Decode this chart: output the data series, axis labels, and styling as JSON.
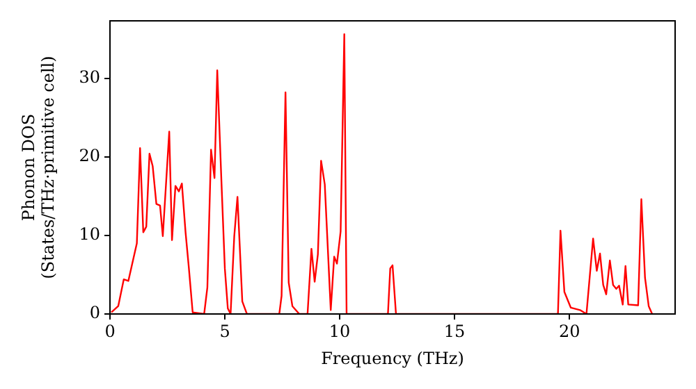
{
  "chart_data": {
    "type": "line",
    "xlabel": "Frequency (THz)",
    "ylabel": "Phonon DOS\n(States/THz·primitive cell)",
    "xlim": [
      0,
      24.6
    ],
    "ylim": [
      0,
      37.3
    ],
    "xticks": [
      0,
      5,
      10,
      15,
      20
    ],
    "yticks": [
      0,
      10,
      20,
      30
    ],
    "grid": false,
    "legend": false,
    "marker": "none",
    "line_style": "solid",
    "series": [
      {
        "color": "#ff0000",
        "x": [
          0.06,
          0.36,
          0.6,
          0.8,
          0.97,
          1.17,
          1.31,
          1.45,
          1.58,
          1.72,
          1.86,
          2.02,
          2.18,
          2.3,
          2.58,
          2.7,
          2.85,
          3.0,
          3.13,
          3.29,
          3.43,
          3.6,
          4.1,
          4.24,
          4.4,
          4.55,
          4.67,
          4.85,
          5.0,
          5.13,
          5.25,
          5.41,
          5.55,
          5.76,
          5.96,
          7.37,
          7.47,
          7.64,
          7.78,
          7.94,
          8.24,
          8.6,
          8.77,
          8.91,
          9.05,
          9.19,
          9.35,
          9.61,
          9.76,
          9.88,
          10.04,
          10.2,
          10.3,
          12.1,
          12.2,
          12.3,
          12.45,
          19.5,
          19.61,
          19.78,
          20.06,
          20.46,
          20.74,
          21.03,
          21.19,
          21.33,
          21.47,
          21.6,
          21.76,
          21.9,
          22.04,
          22.16,
          22.32,
          22.44,
          22.56,
          22.99,
          23.13,
          23.29,
          23.45,
          23.6
        ],
        "values": [
          0.2,
          1.0,
          4.4,
          4.2,
          6.4,
          9.0,
          21.1,
          10.4,
          11.1,
          20.4,
          18.8,
          14.0,
          13.8,
          9.9,
          23.2,
          9.4,
          16.3,
          15.6,
          16.6,
          10.4,
          6.0,
          0.2,
          0,
          3.4,
          20.9,
          17.3,
          31.0,
          17,
          5.8,
          0.7,
          0,
          9.9,
          14.9,
          1.6,
          0,
          0,
          2.3,
          28.2,
          4.0,
          1.0,
          0,
          0,
          8.3,
          4.1,
          7.6,
          19.5,
          16.5,
          0.5,
          7.3,
          6.4,
          10.5,
          35.6,
          0,
          0,
          5.8,
          6.2,
          0,
          0,
          10.6,
          2.8,
          0.8,
          0.5,
          0,
          9.6,
          5.5,
          7.7,
          3.7,
          2.5,
          6.8,
          3.7,
          3.2,
          3.6,
          1.2,
          6.1,
          1.2,
          1.1,
          14.6,
          4.6,
          1.0,
          0
        ]
      }
    ]
  }
}
